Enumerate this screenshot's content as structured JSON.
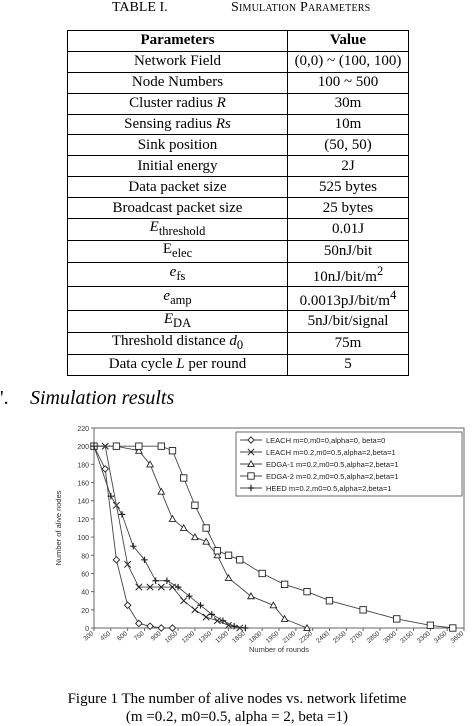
{
  "table": {
    "caption_number": "TABLE I.",
    "caption_title": "Simulation Parameters",
    "headers": [
      "Parameters",
      "Value"
    ],
    "rows": [
      {
        "param": "Network Field",
        "value": "(0,0) ~ (100, 100)"
      },
      {
        "param": "Node Numbers",
        "value": "100 ~ 500"
      },
      {
        "param": "Cluster radius ",
        "param_italic": "R",
        "value": "30m"
      },
      {
        "param": "Sensing radius ",
        "param_italic": "Rs",
        "value": "10m"
      },
      {
        "param": "Sink position",
        "value": "(50, 50)"
      },
      {
        "param": "Initial energy",
        "value": "2J"
      },
      {
        "param": "Data packet size",
        "value": "525 bytes"
      },
      {
        "param": "Broadcast packet size",
        "value": "25 bytes"
      },
      {
        "param_italic": "E",
        "param_sub": "threshold",
        "value": "0.01J"
      },
      {
        "param": "E",
        "param_sub": "elec",
        "value": "50nJ/bit"
      },
      {
        "param_italic": "e",
        "param_sub": "fs",
        "value": "10nJ/bit/m",
        "value_sup": "2"
      },
      {
        "param_italic": "e",
        "param_sub": "amp",
        "value": "0.0013pJ/bit/m",
        "value_sup": "4"
      },
      {
        "param_italic": "E",
        "param_sub": "DA",
        "value": "5nJ/bit/signal"
      },
      {
        "param": "Threshold distance ",
        "param_italic": "d",
        "param_sub": "0",
        "value": "75m"
      },
      {
        "param": "Data cycle ",
        "param_italic": "L",
        "param_after": " per round",
        "value": "5"
      }
    ]
  },
  "section": {
    "marker": "'.",
    "title": "Simulation results"
  },
  "chart_data": {
    "type": "line",
    "xlabel": "Number of rounds",
    "ylabel": "Number of alive nodes",
    "xlim": [
      300,
      3600
    ],
    "ylim": [
      0,
      220
    ],
    "x_ticks": [
      "300",
      "450",
      "600",
      "750",
      "900",
      "1050",
      "1200",
      "1350",
      "1500",
      "1650",
      "1800",
      "1950",
      "2100",
      "2250",
      "2400",
      "2550",
      "2700",
      "2850",
      "3000",
      "3150",
      "3300",
      "3450",
      "3600"
    ],
    "y_ticks": [
      "0",
      "20",
      "40",
      "60",
      "80",
      "100",
      "120",
      "140",
      "160",
      "180",
      "200",
      "220"
    ],
    "grid": false,
    "legend_position": "top-right",
    "series": [
      {
        "name": "LEACH m=0,m0=0,alpha=0, beta=0",
        "marker": "diamond",
        "x": [
          300,
          400,
          500,
          600,
          700,
          800,
          900,
          1000
        ],
        "y": [
          200,
          175,
          75,
          25,
          5,
          2,
          0,
          0
        ]
      },
      {
        "name": "LEACH m=0.2,m0=0.5,alpha=2,beta=1",
        "marker": "x",
        "x": [
          300,
          400,
          500,
          600,
          700,
          800,
          900,
          1000,
          1100,
          1200,
          1300,
          1400,
          1500,
          1600
        ],
        "y": [
          200,
          200,
          135,
          70,
          45,
          45,
          45,
          45,
          30,
          20,
          12,
          8,
          3,
          0
        ]
      },
      {
        "name": "EDGA-1 m=0.2,m0=0.5,alpha=2,beta=1",
        "marker": "triangle",
        "x": [
          300,
          500,
          700,
          800,
          900,
          1000,
          1100,
          1200,
          1300,
          1400,
          1500,
          1700,
          1900,
          2000,
          2200
        ],
        "y": [
          200,
          200,
          195,
          180,
          150,
          120,
          110,
          100,
          95,
          80,
          55,
          35,
          25,
          10,
          0
        ]
      },
      {
        "name": "EDGA-2 m=0.2,m0=0.5,alpha=2,beta=1",
        "marker": "square",
        "x": [
          300,
          500,
          700,
          900,
          1000,
          1100,
          1200,
          1300,
          1400,
          1500,
          1600,
          1800,
          2000,
          2200,
          2400,
          2700,
          3000,
          3300,
          3500
        ],
        "y": [
          200,
          200,
          200,
          200,
          195,
          165,
          135,
          110,
          85,
          80,
          75,
          60,
          48,
          40,
          30,
          20,
          10,
          3,
          0
        ]
      },
      {
        "name": "HEED m=0.2,m0=0.5,alpha=2,beta=1",
        "marker": "plus",
        "x": [
          300,
          450,
          550,
          650,
          750,
          850,
          950,
          1050,
          1150,
          1250,
          1350,
          1450,
          1550,
          1650
        ],
        "y": [
          200,
          145,
          125,
          90,
          75,
          52,
          52,
          45,
          35,
          25,
          15,
          8,
          2,
          0
        ]
      }
    ]
  },
  "figure": {
    "caption_line1": "Figure 1 The number of alive nodes vs. network lifetime",
    "caption_line2": "(m =0.2, m0=0.5, alpha = 2, beta =1)"
  }
}
